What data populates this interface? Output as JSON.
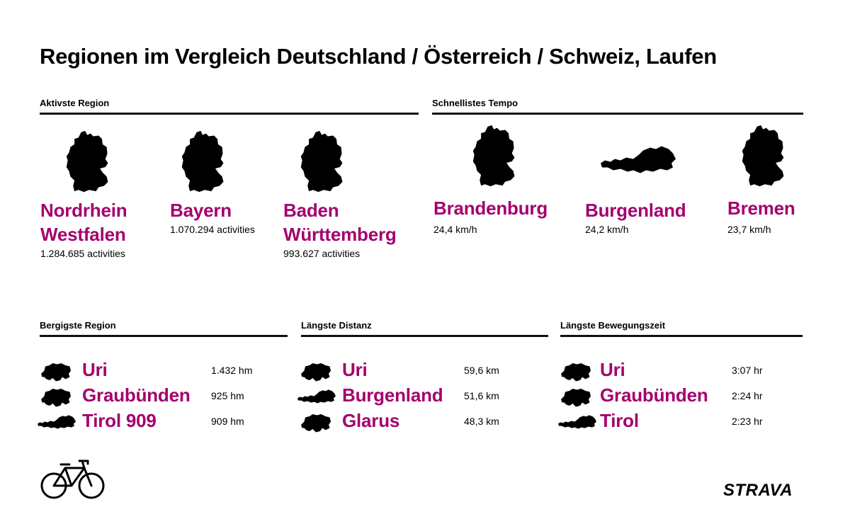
{
  "title": "Regionen im Vergleich  Deutschland / Österreich / Schweiz, Laufen",
  "accent_color": "#a3006e",
  "aktivste": {
    "heading": "Aktivste Region",
    "items": [
      {
        "name": "Nordrhein\nWestfalen",
        "stat": "1.284.685 activities",
        "icon": "germany-map-icon"
      },
      {
        "name": "Bayern",
        "stat": "1.070.294 activities",
        "icon": "germany-map-icon"
      },
      {
        "name": "Baden\nWürttemberg",
        "stat": "993.627 activities",
        "icon": "germany-map-icon"
      }
    ]
  },
  "tempo": {
    "heading": "Schnellistes Tempo",
    "items": [
      {
        "name": "Brandenburg",
        "stat": "24,4 km/h",
        "icon": "germany-map-icon"
      },
      {
        "name": "Burgenland",
        "stat": "24,2 km/h",
        "icon": "austria-map-icon"
      },
      {
        "name": "Bremen",
        "stat": "23,7 km/h",
        "icon": "germany-map-icon"
      }
    ]
  },
  "bergig": {
    "heading": "Bergigste Region",
    "items": [
      {
        "name": "Uri",
        "value": "1.432 hm",
        "icon": "switzerland-map-icon"
      },
      {
        "name": "Graubünden",
        "value": "925 hm",
        "icon": "switzerland-map-icon"
      },
      {
        "name": "Tirol 909",
        "value": "909 hm",
        "icon": "austria-map-icon"
      }
    ]
  },
  "distanz": {
    "heading": "Längste Distanz",
    "items": [
      {
        "name": "Uri",
        "value": "59,6 km",
        "icon": "switzerland-map-icon"
      },
      {
        "name": "Burgenland",
        "value": "51,6 km",
        "icon": "austria-map-icon"
      },
      {
        "name": "Glarus",
        "value": "48,3 km",
        "icon": "switzerland-map-icon"
      }
    ]
  },
  "bewegung": {
    "heading": "Längste Bewegungszeit",
    "items": [
      {
        "name": "Uri",
        "value": "3:07 hr",
        "icon": "switzerland-map-icon"
      },
      {
        "name": "Graubünden",
        "value": "2:24 hr",
        "icon": "switzerland-map-icon"
      },
      {
        "name": "Tirol",
        "value": "2:23 hr",
        "icon": "austria-map-icon"
      }
    ]
  },
  "footer": {
    "bike_icon": "bicycle-icon",
    "logo": "STRAVA"
  }
}
